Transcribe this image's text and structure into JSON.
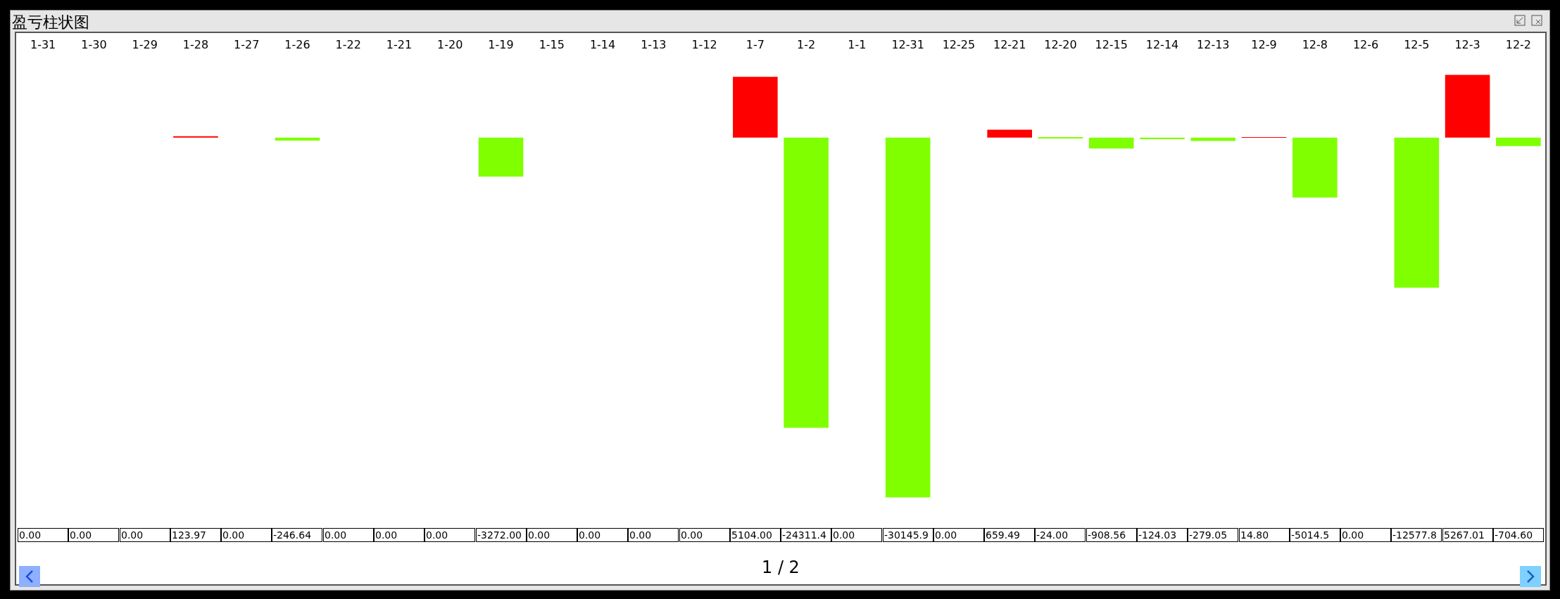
{
  "chart_data": {
    "type": "bar",
    "title": "盈亏柱状图",
    "categories": [
      "1-31",
      "1-30",
      "1-29",
      "1-28",
      "1-27",
      "1-26",
      "1-22",
      "1-21",
      "1-20",
      "1-19",
      "1-15",
      "1-14",
      "1-13",
      "1-12",
      "1-7",
      "1-2",
      "1-1",
      "12-31",
      "12-25",
      "12-21",
      "12-20",
      "12-15",
      "12-14",
      "12-13",
      "12-9",
      "12-8",
      "12-6",
      "12-5",
      "12-3",
      "12-2"
    ],
    "values": [
      0,
      0,
      0,
      123.97,
      0,
      -246.64,
      0,
      0,
      0,
      -3272.0,
      0,
      0,
      0,
      0,
      5104.0,
      -24311.4,
      0,
      -30145.9,
      0,
      659.49,
      -24.0,
      -908.56,
      -124.03,
      -279.05,
      14.8,
      -5014.5,
      0,
      -12577.8,
      5267.01,
      -704.6
    ],
    "value_labels": [
      "0.00",
      "0.00",
      "0.00",
      "123.97",
      "0.00",
      "-246.64",
      "0.00",
      "0.00",
      "0.00",
      "-3272.00",
      "0.00",
      "0.00",
      "0.00",
      "0.00",
      "5104.00",
      "-24311.4",
      "0.00",
      "-30145.9",
      "0.00",
      "659.49",
      "-24.00",
      "-908.56",
      "-124.03",
      "-279.05",
      "14.80",
      "-5014.5",
      "0.00",
      "-12577.8",
      "5267.01",
      "-704.60"
    ],
    "colors": [
      "#ff0000",
      "#ff0000",
      "#ff0000",
      "#ff0000",
      "#ff0000",
      "#80ff00",
      "#ff0000",
      "#ff0000",
      "#ff0000",
      "#80ff00",
      "#ff0000",
      "#ff0000",
      "#ff0000",
      "#ff0000",
      "#ff0000",
      "#80ff00",
      "#ff0000",
      "#80ff00",
      "#ff0000",
      "#ff0000",
      "#80ff00",
      "#80ff00",
      "#80ff00",
      "#80ff00",
      "#ff0000",
      "#80ff00",
      "#ff0000",
      "#80ff00",
      "#ff0000",
      "#80ff00"
    ],
    "annotations": [
      "1 / 2"
    ],
    "grid": false,
    "legend": false
  }
}
